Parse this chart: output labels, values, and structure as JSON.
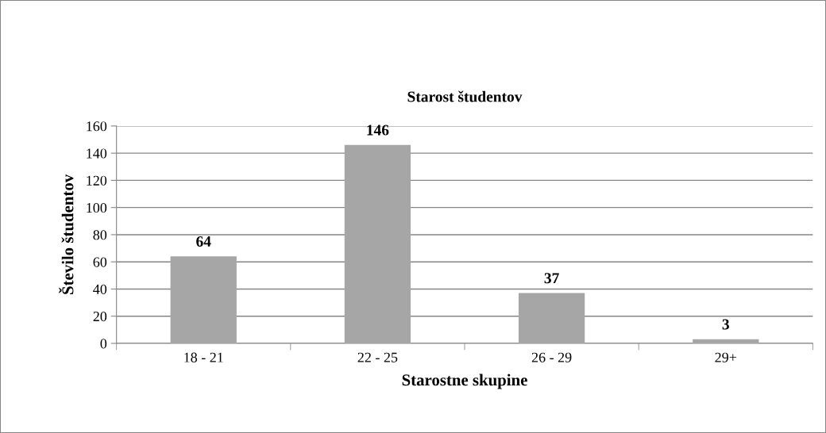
{
  "chart_data": {
    "type": "bar",
    "title": "Starost študentov",
    "xlabel": "Starostne skupine",
    "ylabel": "Število študentov",
    "categories": [
      "18 - 21",
      "22 - 25",
      "26 - 29",
      "29+"
    ],
    "values": [
      64,
      146,
      37,
      3
    ],
    "color": "#a6a6a6",
    "ylim": [
      0,
      160
    ],
    "yticks": [
      0,
      20,
      40,
      60,
      80,
      100,
      120,
      140,
      160
    ],
    "grid": "y",
    "data_labels": true,
    "legend": false
  }
}
